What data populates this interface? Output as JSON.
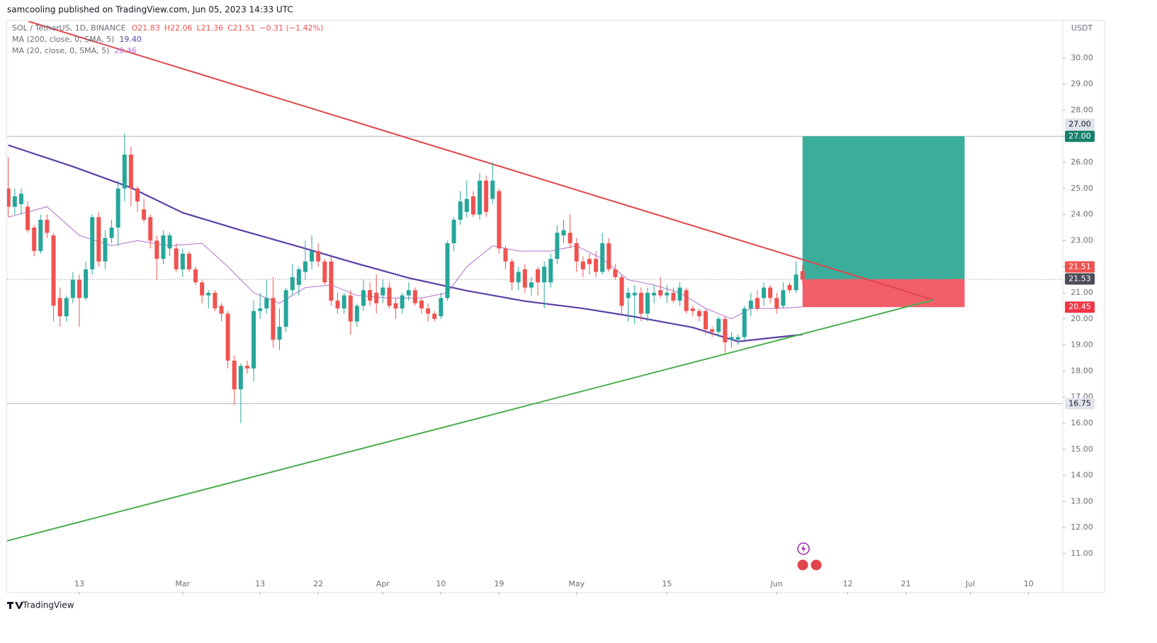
{
  "chart_data": {
    "type": "candlestick",
    "header": "samcooling published on TradingView.com, Jun 05, 2023 14:33 UTC",
    "symbol_legend": "SOL / TetherUS, 1D, BINANCE",
    "ohlc_legend": [
      "O21.83",
      "H22.06",
      "L21.36",
      "C21.51",
      "−0.31 (−1.42%)"
    ],
    "currency": "USDT",
    "footer": "TradingView",
    "up_color": "#26a69a",
    "down_color": "#ef5350",
    "x": [
      1,
      2,
      3,
      4,
      5,
      6,
      7,
      8,
      9,
      10,
      11,
      12,
      13,
      14,
      15,
      16,
      17,
      18,
      19,
      20,
      21,
      22,
      23,
      24,
      25,
      26,
      27,
      28,
      29,
      30,
      31,
      32,
      33,
      34,
      35,
      36,
      37,
      38,
      39,
      40,
      41,
      42,
      43,
      44,
      45,
      46,
      47,
      48,
      49,
      50,
      51,
      52,
      53,
      54,
      55,
      56,
      57,
      58,
      59,
      60,
      61,
      62,
      63,
      64,
      65,
      66,
      67,
      68,
      69,
      70,
      71,
      72,
      73,
      74,
      75,
      76,
      77,
      78,
      79,
      80,
      81,
      82,
      83,
      84,
      85,
      86,
      87,
      88,
      89,
      90,
      91,
      92,
      93,
      94,
      95,
      96,
      97,
      98,
      99,
      100,
      101,
      102,
      103,
      104,
      105,
      106,
      107,
      108,
      109,
      110,
      111,
      112,
      113,
      114,
      115,
      116,
      117,
      118,
      119,
      120,
      121,
      122,
      123,
      124
    ],
    "open": [
      25.0,
      24.3,
      24.4,
      24.3,
      23.5,
      22.6,
      23.8,
      23.2,
      20.8,
      20.1,
      20.8,
      21.5,
      20.8,
      21.9,
      23.9,
      22.2,
      23.1,
      23.5,
      25.0,
      26.3,
      25.0,
      24.2,
      23.9,
      23.0,
      22.3,
      22.7,
      22.7,
      21.9,
      22.5,
      21.9,
      21.4,
      20.9,
      21.0,
      20.5,
      20.2,
      18.4,
      17.3,
      18.2,
      18.1,
      20.3,
      20.4,
      20.8,
      19.2,
      19.7,
      21.1,
      21.3,
      21.8,
      22.2,
      22.6,
      22.2,
      22.2,
      20.7,
      20.4,
      20.9,
      19.9,
      20.5,
      21.1,
      21.0,
      20.9,
      21.2,
      20.6,
      20.4,
      20.9,
      21.1,
      20.7,
      20.4,
      20.2,
      20.1,
      20.8,
      22.9,
      23.8,
      24.1,
      24.7,
      24.0,
      25.3,
      24.6,
      24.9,
      22.7,
      22.2,
      21.4,
      21.9,
      21.2,
      21.9,
      21.4,
      21.4,
      22.3,
      23.2,
      23.3,
      22.9,
      22.2,
      22.3,
      22.3,
      21.8,
      22.9,
      21.9,
      21.6,
      20.8,
      20.9,
      21.0,
      20.2,
      20.9,
      21.1,
      20.9,
      21.0,
      20.7,
      21.1,
      20.4,
      20.3,
      20.3,
      19.6,
      19.5,
      20.0,
      19.2,
      19.2,
      19.3,
      20.4,
      20.8,
      20.8,
      21.2,
      20.8,
      20.5,
      21.3,
      21.1,
      21.83
    ],
    "high": [
      26.2,
      25.0,
      25.0,
      24.5,
      23.6,
      24.0,
      24.0,
      23.3,
      21.2,
      20.9,
      21.8,
      21.7,
      22.2,
      24.0,
      24.1,
      23.4,
      23.8,
      25.3,
      27.1,
      26.6,
      25.1,
      24.6,
      24.0,
      23.2,
      23.4,
      23.3,
      22.9,
      22.7,
      22.6,
      22.0,
      21.5,
      21.1,
      21.1,
      20.6,
      20.3,
      18.6,
      18.3,
      18.4,
      20.7,
      21.0,
      21.5,
      21.6,
      20.4,
      21.2,
      22.1,
      22.0,
      23.0,
      23.2,
      22.9,
      22.3,
      22.4,
      21.0,
      21.0,
      21.1,
      20.6,
      21.5,
      21.4,
      21.7,
      21.5,
      21.4,
      20.8,
      21.0,
      21.4,
      21.2,
      20.8,
      20.6,
      20.3,
      21.0,
      23.0,
      23.9,
      24.9,
      25.3,
      24.9,
      25.6,
      25.5,
      26.0,
      25.0,
      22.8,
      22.3,
      22.0,
      22.1,
      21.6,
      22.0,
      22.2,
      22.5,
      23.6,
      23.8,
      24.0,
      23.1,
      22.4,
      22.5,
      22.6,
      23.3,
      23.1,
      22.1,
      21.7,
      21.2,
      21.3,
      21.2,
      21.2,
      21.3,
      21.6,
      21.3,
      21.2,
      21.4,
      21.2,
      20.5,
      20.4,
      20.4,
      19.7,
      20.1,
      20.1,
      19.5,
      19.4,
      20.5,
      21.0,
      21.1,
      21.4,
      21.3,
      21.0,
      21.4,
      21.4,
      22.2,
      22.06
    ],
    "low": [
      23.9,
      24.0,
      24.0,
      23.3,
      22.4,
      22.5,
      23.1,
      19.9,
      19.7,
      19.9,
      20.6,
      19.7,
      20.7,
      21.7,
      22.0,
      21.9,
      22.9,
      22.8,
      24.5,
      24.3,
      24.1,
      23.7,
      22.7,
      21.5,
      22.1,
      22.4,
      21.8,
      21.6,
      21.8,
      21.3,
      20.6,
      20.4,
      20.3,
      19.9,
      18.1,
      16.7,
      16.0,
      17.9,
      17.6,
      20.0,
      20.2,
      18.9,
      18.8,
      19.5,
      20.9,
      20.9,
      21.5,
      21.9,
      22.0,
      21.3,
      20.5,
      20.2,
      20.2,
      19.4,
      19.7,
      20.3,
      20.5,
      20.2,
      20.6,
      20.4,
      20.0,
      20.2,
      20.7,
      20.5,
      20.2,
      19.9,
      19.9,
      20.0,
      20.7,
      22.6,
      23.6,
      23.9,
      23.9,
      23.8,
      23.9,
      24.4,
      22.5,
      21.9,
      21.1,
      21.1,
      21.0,
      20.9,
      20.9,
      20.4,
      21.2,
      22.1,
      22.9,
      22.7,
      21.8,
      21.6,
      21.7,
      21.6,
      21.7,
      21.8,
      21.5,
      20.2,
      19.9,
      19.8,
      19.9,
      19.9,
      20.6,
      20.8,
      20.6,
      20.6,
      20.5,
      20.2,
      20.1,
      19.9,
      19.4,
      19.3,
      19.3,
      18.7,
      18.9,
      19.0,
      19.2,
      20.1,
      20.3,
      20.5,
      20.6,
      20.2,
      20.4,
      21.0,
      21.0,
      21.36
    ],
    "close": [
      24.3,
      24.7,
      24.8,
      23.4,
      22.6,
      23.8,
      23.3,
      20.5,
      20.1,
      20.8,
      21.5,
      20.8,
      21.9,
      23.9,
      22.2,
      23.1,
      23.5,
      25.0,
      26.3,
      25.0,
      24.5,
      23.8,
      23.0,
      22.3,
      23.2,
      23.2,
      21.9,
      22.5,
      21.9,
      21.4,
      20.9,
      21.0,
      20.4,
      20.2,
      18.4,
      17.3,
      18.2,
      18.1,
      20.3,
      20.4,
      20.8,
      19.2,
      19.7,
      21.1,
      21.6,
      21.9,
      22.2,
      22.6,
      22.2,
      21.4,
      20.7,
      20.4,
      20.9,
      19.9,
      20.5,
      21.1,
      20.7,
      20.6,
      21.2,
      20.5,
      20.4,
      20.9,
      21.1,
      20.6,
      20.4,
      20.2,
      20.0,
      20.8,
      22.9,
      23.8,
      24.5,
      24.6,
      24.0,
      25.3,
      24.1,
      25.3,
      22.7,
      22.2,
      21.4,
      21.8,
      21.2,
      21.4,
      21.4,
      22.0,
      22.3,
      23.3,
      23.4,
      22.9,
      22.2,
      21.9,
      22.1,
      21.8,
      22.9,
      21.9,
      21.6,
      20.5,
      21.0,
      21.0,
      20.2,
      21.0,
      21.0,
      20.9,
      21.0,
      20.7,
      21.2,
      20.3,
      20.3,
      20.1,
      19.6,
      19.5,
      20.0,
      19.1,
      19.3,
      19.3,
      20.4,
      20.7,
      20.4,
      21.2,
      20.8,
      20.4,
      21.1,
      21.1,
      21.7,
      21.51
    ],
    "ma_lines": [
      {
        "name": "MA (200, close, 0, SMA, 5)",
        "color": "#5b3fa6",
        "width": 2.2,
        "x": [
          1,
          11,
          20,
          28,
          37,
          46,
          55,
          63,
          72,
          81,
          90,
          98,
          107,
          114,
          118,
          124
        ],
        "values": [
          26.66,
          25.84,
          25.03,
          24.07,
          23.4,
          22.77,
          22.12,
          21.57,
          21.08,
          20.68,
          20.4,
          20.08,
          19.67,
          19.13,
          19.24,
          19.4
        ],
        "last_label": "19.40"
      },
      {
        "name": "MA (20, close, 0, SMA, 5)",
        "color": "#b26fcf",
        "width": 1,
        "x": [
          1,
          7,
          12,
          17,
          21,
          26,
          31,
          35,
          39,
          43,
          47,
          51,
          55,
          60,
          65,
          69,
          72,
          76,
          80,
          85,
          89,
          93,
          97,
          101,
          105,
          109,
          113,
          116,
          120,
          124
        ],
        "values": [
          23.9,
          24.3,
          23.2,
          22.8,
          23.0,
          22.8,
          22.9,
          22.0,
          21.0,
          20.6,
          21.2,
          21.3,
          20.9,
          20.8,
          20.8,
          21.0,
          22.0,
          22.8,
          22.6,
          22.6,
          22.8,
          22.3,
          21.5,
          21.3,
          21.0,
          20.4,
          20.0,
          20.4,
          20.4,
          20.46
        ],
        "last_label": "20.46"
      }
    ],
    "trend_lines": [
      {
        "color": "#e0464c",
        "x": [
          4.1,
          144.3
        ],
        "values": [
          31.41,
          20.73
        ]
      },
      {
        "color": "#4caf50",
        "x": [
          0.81,
          144.3
        ],
        "values": [
          11.49,
          20.73
        ]
      }
    ],
    "horizontal_lines": [
      {
        "value": 27,
        "label": "27.00"
      },
      {
        "value": 16.75,
        "label": "16.75"
      }
    ],
    "position": {
      "x": [
        124,
        149.1
      ],
      "target": 27,
      "entry": 21.53,
      "stop": 20.45,
      "target_label": "27.00",
      "entry_label": "21.53",
      "stop_label": "20.45",
      "profit_color": "#3aae9a",
      "loss_color": "#f25e6a"
    },
    "last_price": {
      "value": 21.51,
      "label": "21.51"
    },
    "xlim": [
      0.81,
      164.3
    ],
    "ylim": [
      9.53,
      31.41
    ],
    "xticks": [
      {
        "value": 12,
        "label": "13"
      },
      {
        "value": 28,
        "label": "Mar"
      },
      {
        "value": 40,
        "label": "13"
      },
      {
        "value": 49,
        "label": "22"
      },
      {
        "value": 59,
        "label": "Apr"
      },
      {
        "value": 68,
        "label": "10"
      },
      {
        "value": 77,
        "label": "19"
      },
      {
        "value": 89,
        "label": "May"
      },
      {
        "value": 103,
        "label": "15"
      },
      {
        "value": 120,
        "label": "Jun"
      },
      {
        "value": 131,
        "label": "12"
      },
      {
        "value": 140,
        "label": "21"
      },
      {
        "value": 150,
        "label": "Jul"
      },
      {
        "value": 159,
        "label": "10"
      }
    ],
    "yticks": [
      {
        "value": 11,
        "label": "11.00"
      },
      {
        "value": 12,
        "label": "12.00"
      },
      {
        "value": 13,
        "label": "13.00"
      },
      {
        "value": 14,
        "label": "14.00"
      },
      {
        "value": 15,
        "label": "15.00"
      },
      {
        "value": 16,
        "label": "16.00"
      },
      {
        "value": 17,
        "label": "17.00"
      },
      {
        "value": 18,
        "label": "18.00"
      },
      {
        "value": 19,
        "label": "19.00"
      },
      {
        "value": 20,
        "label": "20.00"
      },
      {
        "value": 21,
        "label": "21.00"
      },
      {
        "value": 22,
        "label": "22.00"
      },
      {
        "value": 23,
        "label": "23.00"
      },
      {
        "value": 24,
        "label": "24.00"
      },
      {
        "value": 25,
        "label": "25.00"
      },
      {
        "value": 26,
        "label": "26.00"
      },
      {
        "value": 27,
        "label": "27.00"
      },
      {
        "value": 28,
        "label": "28.00"
      },
      {
        "value": 29,
        "label": "29.00"
      },
      {
        "value": 30,
        "label": "30.00"
      }
    ]
  }
}
